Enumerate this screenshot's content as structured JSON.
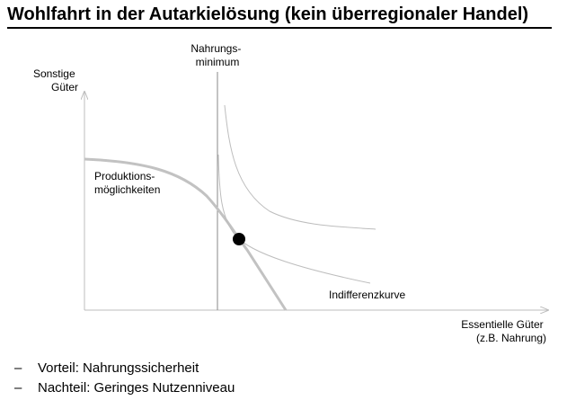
{
  "title": "Wohlfahrt in der Autarkielösung (kein überregionaler Handel)",
  "diagram": {
    "y_axis_label": [
      "Sonstige",
      "Güter"
    ],
    "x_axis_label": [
      "Essentielle Güter",
      "(z.B. Nahrung)"
    ],
    "minimum_label": [
      "Nahrungs-",
      "minimum"
    ],
    "ppf_label": [
      "Produktions-",
      "möglichkeiten"
    ],
    "indifference_label": "Indifferenzkurve",
    "colors": {
      "axis": "#bdbdbd",
      "minimum_line": "#8a8a8a",
      "ppf": "#c2c2c2",
      "indifference": "#bdbdbd",
      "point": "#000000"
    }
  },
  "bullets": [
    {
      "marker": "–",
      "text": "Vorteil: Nahrungssicherheit"
    },
    {
      "marker": "–",
      "text": "Nachteil: Geringes Nutzenniveau"
    }
  ]
}
